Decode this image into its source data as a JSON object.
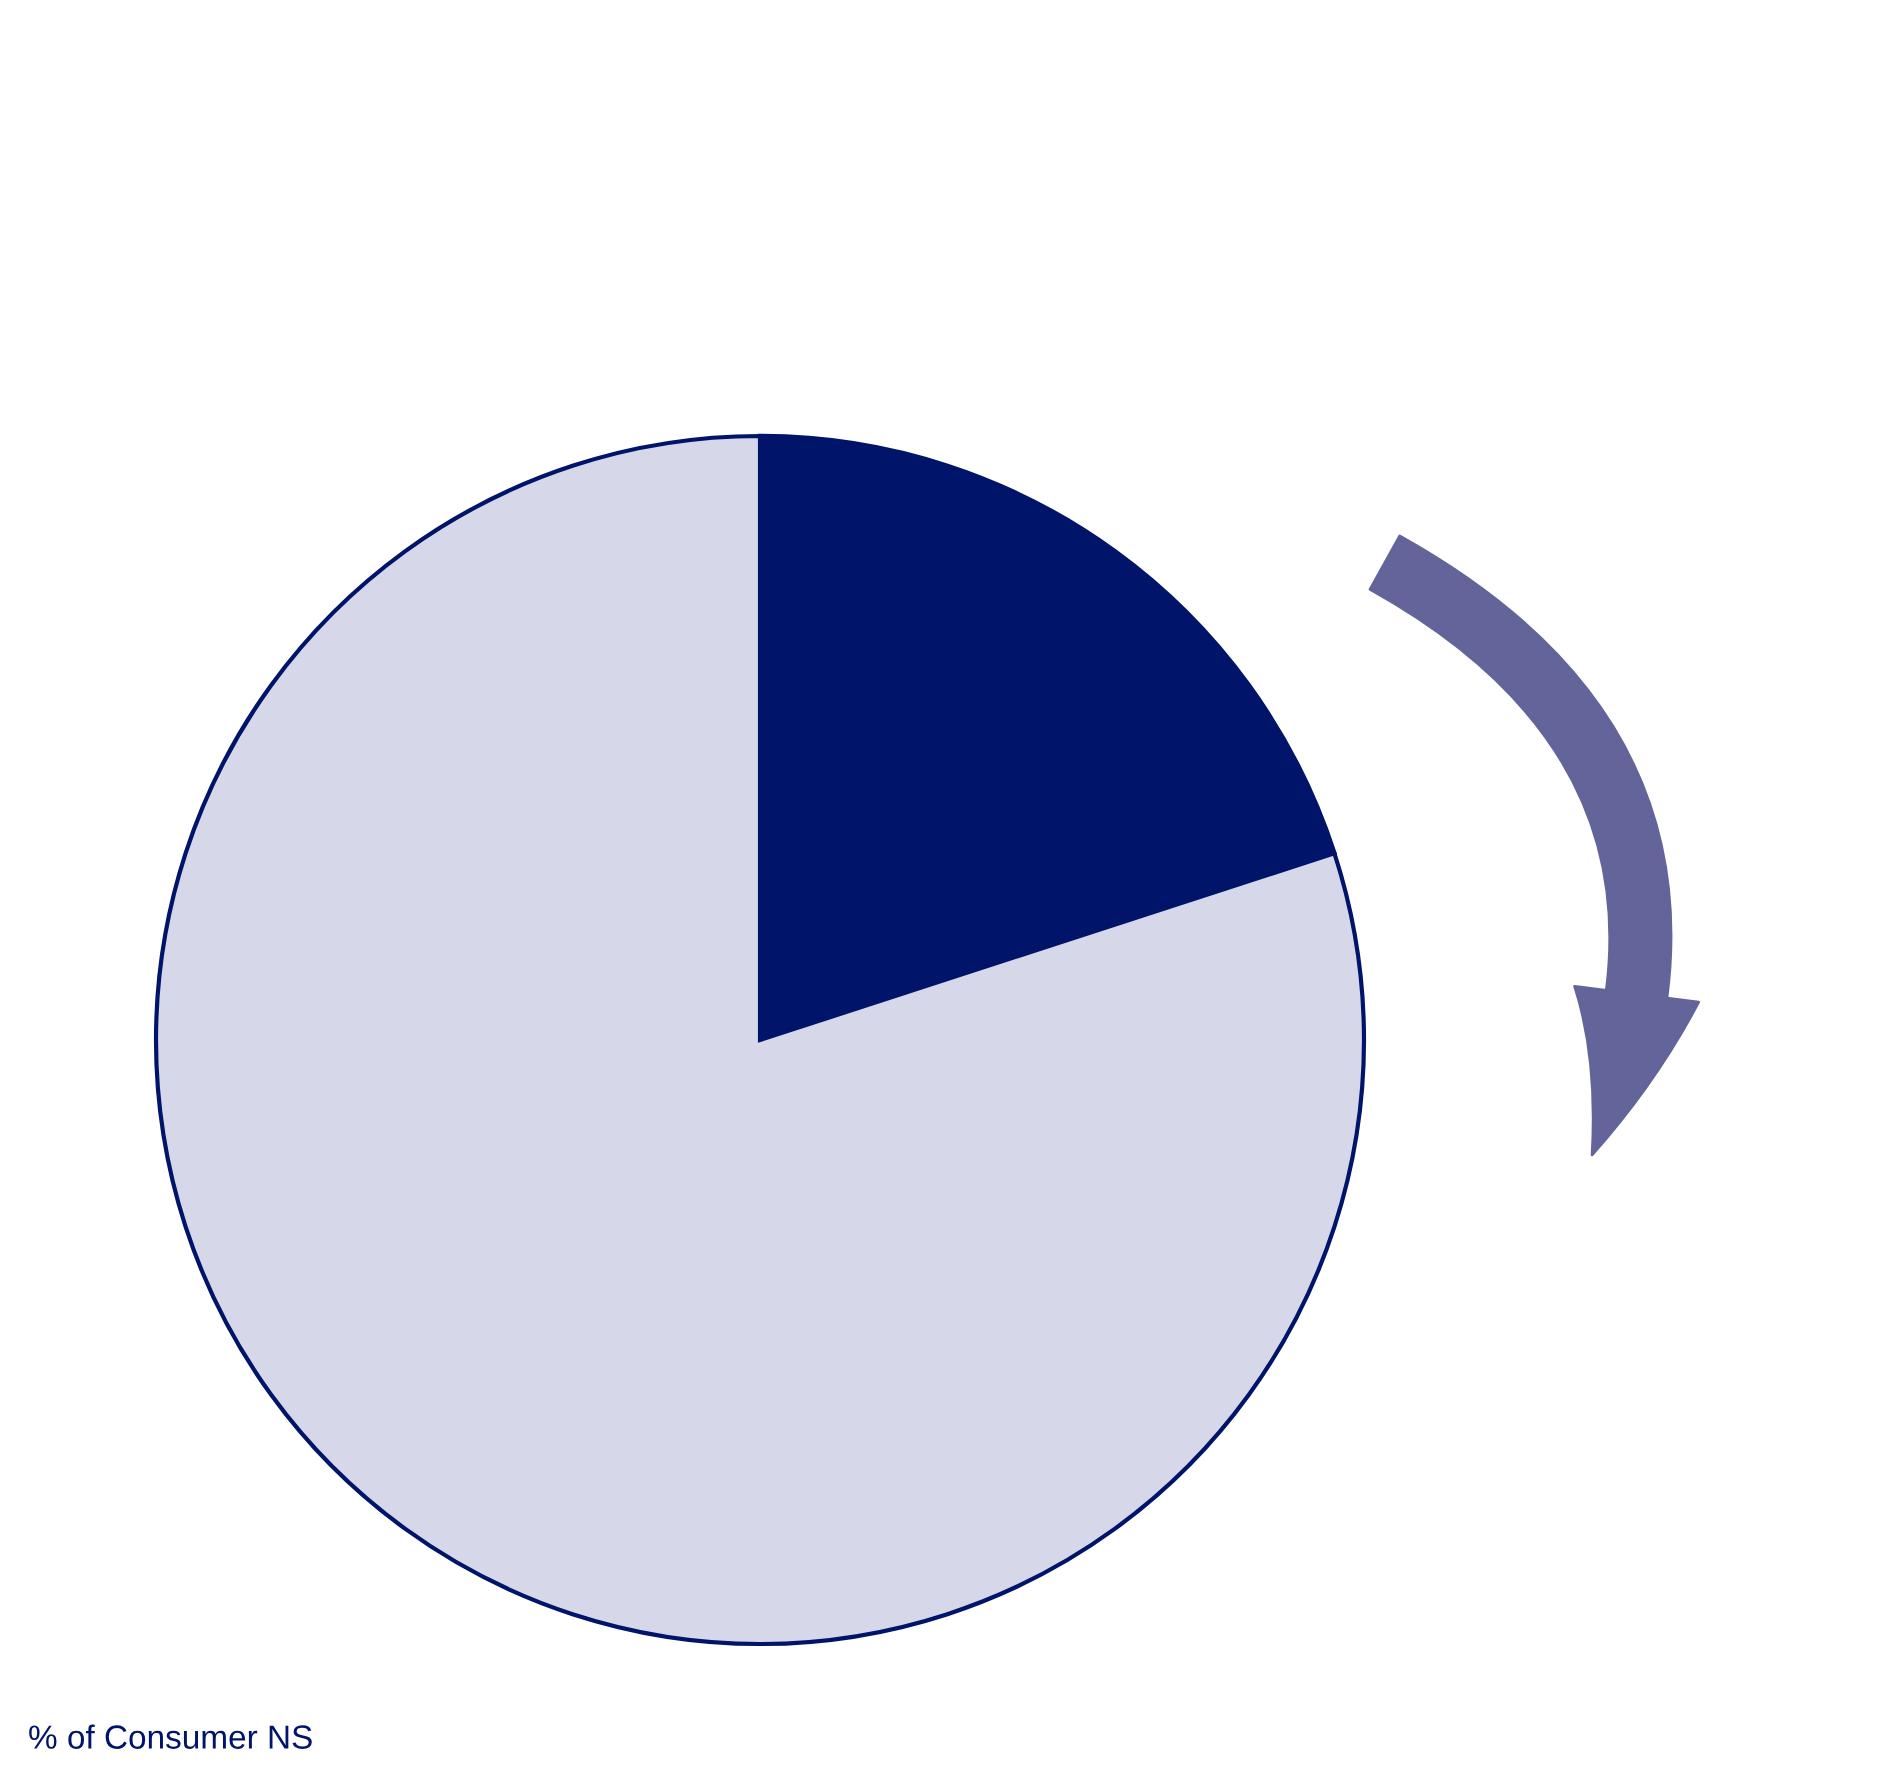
{
  "chart_data": {
    "type": "pie",
    "categories": [
      null,
      null
    ],
    "values": [
      20,
      80
    ],
    "colors": [
      "#001469",
      "#d6d8ea"
    ],
    "annotations": [
      "% of Consumer NS"
    ]
  }
}
